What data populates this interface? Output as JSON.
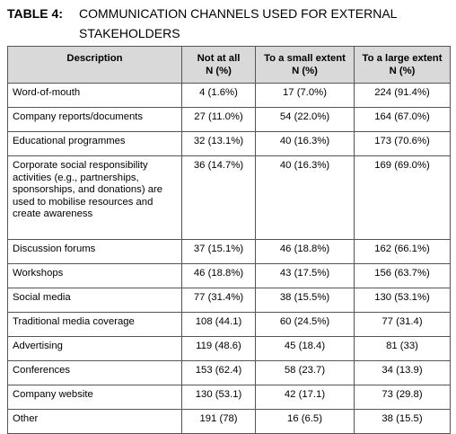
{
  "caption": {
    "label": "TABLE 4",
    "title_line1": "COMMUNICATION CHANNELS USED FOR EXTERNAL",
    "title_line2": "STAKEHOLDERS"
  },
  "table": {
    "headers": [
      {
        "line1": "Description",
        "line2": ""
      },
      {
        "line1": "Not at all",
        "line2": "N (%)"
      },
      {
        "line1": "To a small extent",
        "line2": "N (%)"
      },
      {
        "line1": "To a large extent",
        "line2": "N (%)"
      }
    ],
    "rows": [
      {
        "description": "Word-of-mouth",
        "not_at_all": "4 (1.6%)",
        "small": "17 (7.0%)",
        "large": "224 (91.4%)"
      },
      {
        "description": "Company reports/documents",
        "not_at_all": "27 (11.0%)",
        "small": "54 (22.0%)",
        "large": "164 (67.0%)"
      },
      {
        "description": "Educational programmes",
        "not_at_all": "32 (13.1%)",
        "small": "40 (16.3%)",
        "large": "173 (70.6%)"
      },
      {
        "description": "Corporate social responsibility activities (e.g., partnerships, sponsorships, and donations) are used to mobilise resources and create awareness",
        "not_at_all": "36 (14.7%)",
        "small": "40 (16.3%)",
        "large": "169 (69.0%)"
      },
      {
        "description": "Discussion forums",
        "not_at_all": "37 (15.1%)",
        "small": "46 (18.8%)",
        "large": "162 (66.1%)"
      },
      {
        "description": "Workshops",
        "not_at_all": "46 (18.8%)",
        "small": "43 (17.5%)",
        "large": "156 (63.7%)"
      },
      {
        "description": "Social media",
        "not_at_all": "77 (31.4%)",
        "small": "38 (15.5%)",
        "large": "130 (53.1%)"
      },
      {
        "description": "Traditional media coverage",
        "not_at_all": "108 (44.1)",
        "small": "60 (24.5%)",
        "large": "77 (31.4)"
      },
      {
        "description": "Advertising",
        "not_at_all": "119 (48.6)",
        "small": "45 (18.4)",
        "large": "81 (33)"
      },
      {
        "description": "Conferences",
        "not_at_all": "153 (62.4)",
        "small": "58 (23.7)",
        "large": "34 (13.9)"
      },
      {
        "description": "Company website",
        "not_at_all": "130 (53.1)",
        "small": "42 (17.1)",
        "large": "73 (29.8)"
      },
      {
        "description": "Other",
        "not_at_all": "191 (78)",
        "small": "16 (6.5)",
        "large": "38 (15.5)"
      }
    ]
  }
}
